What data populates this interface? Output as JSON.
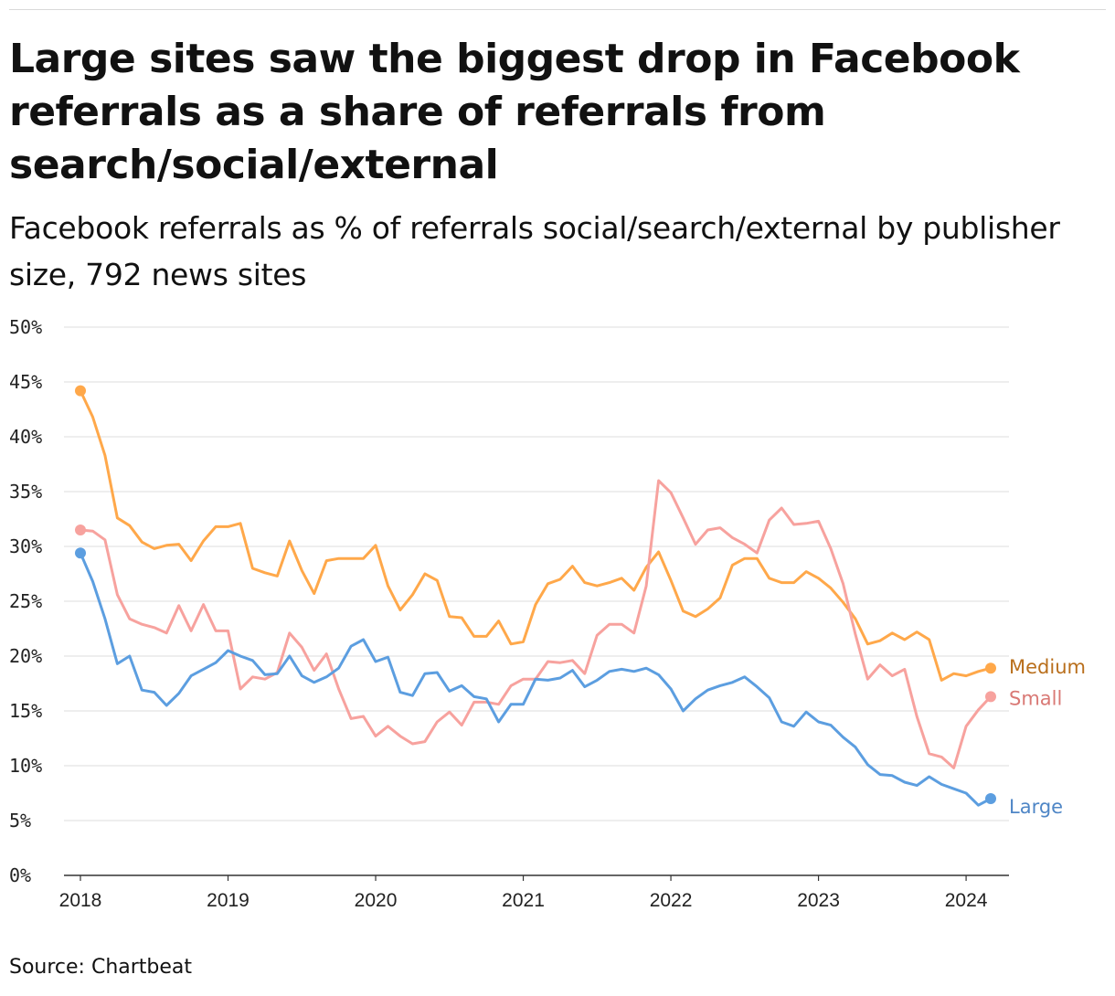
{
  "title": "Large sites saw the biggest drop in Facebook referrals as a share of referrals from search/social/external",
  "subtitle": "Facebook referrals as % of referrals social/search/external by publisher size, 792 news sites",
  "source": "Source: Chartbeat",
  "chart_data": {
    "type": "line",
    "title": "Large sites saw the biggest drop in Facebook referrals as a share of referrals from search/social/external",
    "subtitle": "Facebook referrals as % of referrals social/search/external by publisher size, 792 news sites",
    "xlabel": "",
    "ylabel": "",
    "x_start": "2018-01",
    "x_end": "2024-03",
    "x_ticks": [
      "2018",
      "2019",
      "2020",
      "2021",
      "2022",
      "2023",
      "2024"
    ],
    "y_ticks": [
      "0%",
      "5%",
      "10%",
      "15%",
      "20%",
      "25%",
      "30%",
      "35%",
      "40%",
      "45%",
      "50%"
    ],
    "ylim": [
      0,
      50
    ],
    "grid": "horizontal",
    "legend": "direct labels at line ends (right)",
    "series": [
      {
        "name": "Medium",
        "color": "#ffa84a",
        "label_color": "#b96f1c",
        "values": [
          44.2,
          41.8,
          38.3,
          32.6,
          31.9,
          30.4,
          29.8,
          30.1,
          30.2,
          28.7,
          30.5,
          31.8,
          31.8,
          32.1,
          28.0,
          27.6,
          27.3,
          30.5,
          27.8,
          25.7,
          28.7,
          28.9,
          28.9,
          28.9,
          30.1,
          26.4,
          24.2,
          25.6,
          27.5,
          26.9,
          23.6,
          23.5,
          21.8,
          21.8,
          23.2,
          21.1,
          21.3,
          24.7,
          26.6,
          27.0,
          28.2,
          26.7,
          26.4,
          26.7,
          27.1,
          26.0,
          28.1,
          29.5,
          26.9,
          24.1,
          23.6,
          24.3,
          25.3,
          28.3,
          28.9,
          28.9,
          27.1,
          26.7,
          26.7,
          27.7,
          27.1,
          26.2,
          24.9,
          23.4,
          21.1,
          21.4,
          22.1,
          21.5,
          22.2,
          21.5,
          17.8,
          18.4,
          18.2,
          18.6,
          18.9
        ]
      },
      {
        "name": "Small",
        "color": "#f7a29e",
        "label_color": "#d97975",
        "values": [
          31.5,
          31.4,
          30.6,
          25.6,
          23.4,
          22.9,
          22.6,
          22.1,
          24.6,
          22.3,
          24.7,
          22.3,
          22.3,
          17.0,
          18.1,
          17.9,
          18.5,
          22.1,
          20.8,
          18.7,
          20.2,
          17.0,
          14.3,
          14.5,
          12.7,
          13.6,
          12.7,
          12.0,
          12.2,
          14.0,
          14.9,
          13.7,
          15.8,
          15.8,
          15.6,
          17.3,
          17.9,
          17.9,
          19.5,
          19.4,
          19.6,
          18.4,
          21.9,
          22.9,
          22.9,
          22.1,
          26.4,
          36.0,
          34.9,
          32.6,
          30.2,
          31.5,
          31.7,
          30.8,
          30.2,
          29.4,
          32.4,
          33.5,
          32.0,
          32.1,
          32.3,
          29.8,
          26.6,
          22.0,
          17.9,
          19.2,
          18.2,
          18.8,
          14.5,
          11.1,
          10.8,
          9.8,
          13.6,
          15.1,
          16.3
        ]
      },
      {
        "name": "Large",
        "color": "#5c9ee0",
        "label_color": "#4f86c6",
        "values": [
          29.4,
          26.8,
          23.4,
          19.3,
          20.0,
          16.9,
          16.7,
          15.5,
          16.6,
          18.2,
          18.8,
          19.4,
          20.5,
          20.0,
          19.6,
          18.3,
          18.4,
          20.0,
          18.2,
          17.6,
          18.1,
          18.9,
          20.9,
          21.5,
          19.5,
          19.9,
          16.7,
          16.4,
          18.4,
          18.5,
          16.8,
          17.3,
          16.3,
          16.1,
          14.0,
          15.6,
          15.6,
          17.9,
          17.8,
          18.0,
          18.7,
          17.2,
          17.8,
          18.6,
          18.8,
          18.6,
          18.9,
          18.3,
          17.0,
          15.0,
          16.1,
          16.9,
          17.3,
          17.6,
          18.1,
          17.2,
          16.2,
          14.0,
          13.6,
          14.9,
          14.0,
          13.7,
          12.6,
          11.7,
          10.1,
          9.2,
          9.1,
          8.5,
          8.2,
          9.0,
          8.3,
          7.9,
          7.5,
          6.4,
          7.0
        ]
      }
    ]
  }
}
